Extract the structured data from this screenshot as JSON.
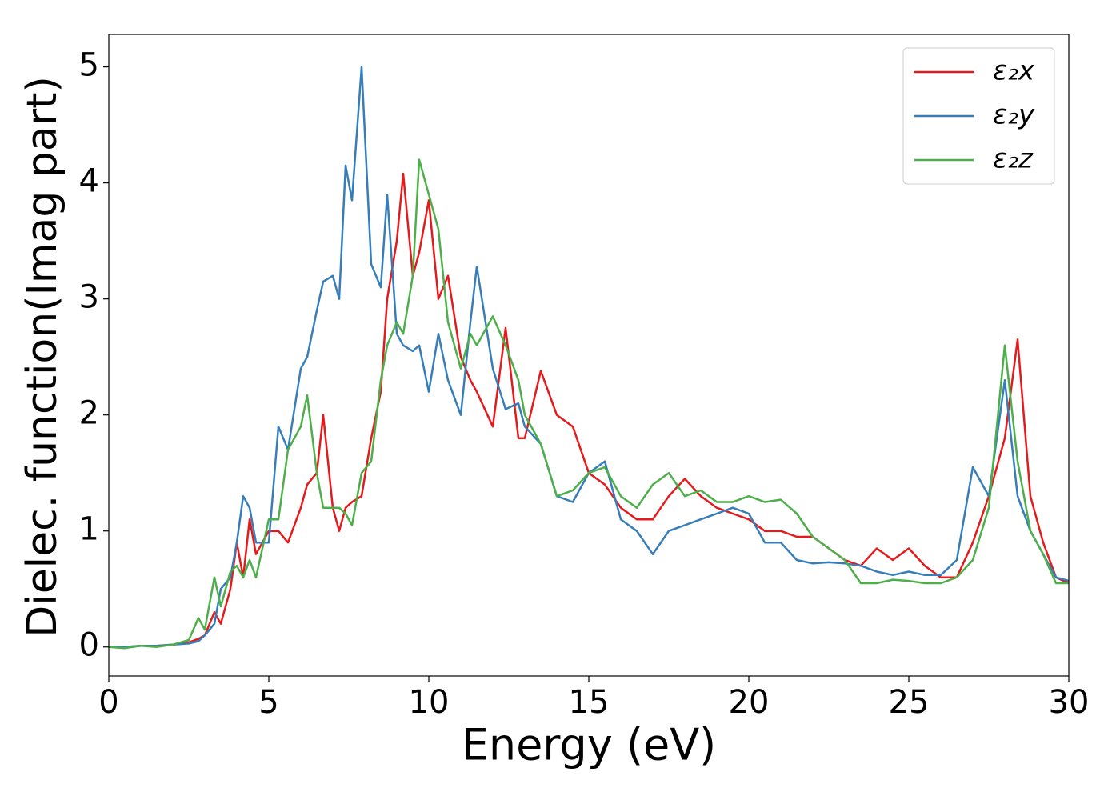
{
  "chart_data": {
    "type": "line",
    "xlabel": "Energy (eV)",
    "ylabel": "Dielec. function(Imag part)",
    "x": [
      0,
      0.5,
      1,
      1.5,
      2,
      2.5,
      2.8,
      3,
      3.3,
      3.5,
      3.8,
      4,
      4.2,
      4.4,
      4.6,
      5,
      5.3,
      5.6,
      6,
      6.2,
      6.5,
      6.7,
      7,
      7.2,
      7.4,
      7.6,
      7.9,
      8.2,
      8.5,
      8.7,
      9,
      9.2,
      9.5,
      9.7,
      10,
      10.3,
      10.6,
      11,
      11.3,
      11.5,
      12,
      12.4,
      12.8,
      13,
      13.5,
      14,
      14.5,
      15,
      15.5,
      16,
      16.5,
      17,
      17.5,
      18,
      18.5,
      19,
      19.5,
      20,
      20.5,
      21,
      21.5,
      22,
      22.5,
      23,
      23.5,
      24,
      24.5,
      25,
      25.5,
      26,
      26.5,
      27,
      27.5,
      28,
      28.4,
      28.8,
      29.2,
      29.6,
      30
    ],
    "series": [
      {
        "name": "ε₂x",
        "color": "#e41a1c",
        "values": [
          0,
          0,
          0.01,
          0.01,
          0.02,
          0.04,
          0.07,
          0.1,
          0.3,
          0.2,
          0.5,
          0.9,
          0.6,
          1.1,
          0.8,
          1.0,
          1.0,
          0.9,
          1.2,
          1.4,
          1.5,
          2.0,
          1.2,
          1.0,
          1.2,
          1.25,
          1.3,
          1.8,
          2.2,
          3.0,
          3.5,
          4.08,
          3.2,
          3.4,
          3.85,
          3.0,
          3.2,
          2.5,
          2.3,
          2.2,
          1.9,
          2.75,
          1.8,
          1.8,
          2.38,
          2.0,
          1.9,
          1.5,
          1.4,
          1.2,
          1.1,
          1.1,
          1.3,
          1.45,
          1.3,
          1.2,
          1.15,
          1.1,
          1.0,
          1.0,
          0.95,
          0.95,
          0.85,
          0.75,
          0.7,
          0.85,
          0.75,
          0.85,
          0.7,
          0.6,
          0.6,
          0.9,
          1.3,
          1.8,
          2.65,
          1.3,
          0.9,
          0.6,
          0.55
        ]
      },
      {
        "name": "ε₂y",
        "color": "#377eb8",
        "values": [
          0,
          0,
          0.01,
          0.01,
          0.02,
          0.03,
          0.05,
          0.1,
          0.2,
          0.5,
          0.6,
          0.9,
          1.3,
          1.2,
          0.9,
          0.9,
          1.9,
          1.7,
          2.4,
          2.5,
          2.9,
          3.15,
          3.2,
          3.0,
          4.15,
          3.85,
          5.0,
          3.3,
          3.1,
          3.9,
          2.7,
          2.6,
          2.55,
          2.6,
          2.2,
          2.7,
          2.3,
          2.0,
          2.8,
          3.28,
          2.4,
          2.05,
          2.1,
          1.9,
          1.75,
          1.3,
          1.25,
          1.5,
          1.6,
          1.1,
          1.0,
          0.8,
          1.0,
          1.05,
          1.1,
          1.15,
          1.2,
          1.15,
          0.9,
          0.9,
          0.75,
          0.72,
          0.73,
          0.72,
          0.7,
          0.65,
          0.62,
          0.65,
          0.62,
          0.62,
          0.75,
          1.55,
          1.3,
          2.3,
          1.3,
          1.0,
          0.8,
          0.6,
          0.57
        ]
      },
      {
        "name": "ε₂z",
        "color": "#4daf4a",
        "values": [
          0,
          -0.01,
          0.01,
          0,
          0.02,
          0.06,
          0.25,
          0.15,
          0.6,
          0.35,
          0.65,
          0.7,
          0.6,
          0.75,
          0.6,
          1.1,
          1.1,
          1.7,
          1.9,
          2.17,
          1.5,
          1.2,
          1.2,
          1.2,
          1.15,
          1.05,
          1.5,
          1.6,
          2.3,
          2.6,
          2.8,
          2.7,
          3.2,
          4.2,
          3.9,
          3.6,
          2.8,
          2.4,
          2.7,
          2.6,
          2.85,
          2.6,
          2.3,
          2.0,
          1.75,
          1.3,
          1.35,
          1.5,
          1.55,
          1.3,
          1.2,
          1.4,
          1.5,
          1.3,
          1.35,
          1.25,
          1.25,
          1.3,
          1.25,
          1.27,
          1.15,
          0.95,
          0.85,
          0.75,
          0.55,
          0.55,
          0.58,
          0.57,
          0.55,
          0.55,
          0.6,
          0.75,
          1.2,
          2.6,
          1.6,
          1.0,
          0.8,
          0.55,
          0.55
        ]
      }
    ],
    "xlim": [
      0,
      30
    ],
    "xticks": [
      0,
      5,
      10,
      15,
      20,
      25,
      30
    ],
    "ylim": [
      -0.25,
      5.28
    ],
    "yticks": [
      0,
      1,
      2,
      3,
      4,
      5
    ],
    "grid": false,
    "legend": "upper right"
  }
}
